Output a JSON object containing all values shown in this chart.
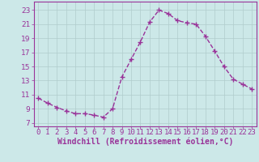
{
  "x": [
    0,
    1,
    2,
    3,
    4,
    5,
    6,
    7,
    8,
    9,
    10,
    11,
    12,
    13,
    14,
    15,
    16,
    17,
    18,
    19,
    20,
    21,
    22,
    23
  ],
  "y": [
    10.5,
    9.8,
    9.2,
    8.7,
    8.3,
    8.3,
    8.1,
    7.8,
    9.0,
    13.5,
    16.0,
    18.5,
    21.3,
    23.0,
    22.5,
    21.5,
    21.2,
    21.0,
    19.3,
    17.2,
    15.0,
    13.2,
    12.5,
    11.8
  ],
  "color": "#993399",
  "bg_color": "#cce8e8",
  "grid_color": "#b0cccc",
  "xlabel": "Windchill (Refroidissement éolien,°C)",
  "ylabel_ticks": [
    7,
    9,
    11,
    13,
    15,
    17,
    19,
    21,
    23
  ],
  "ylim": [
    6.5,
    24.2
  ],
  "xlim": [
    -0.5,
    23.5
  ],
  "marker": "+",
  "markersize": 4,
  "linewidth": 1.0,
  "xlabel_fontsize": 7.0,
  "tick_fontsize": 6.5
}
